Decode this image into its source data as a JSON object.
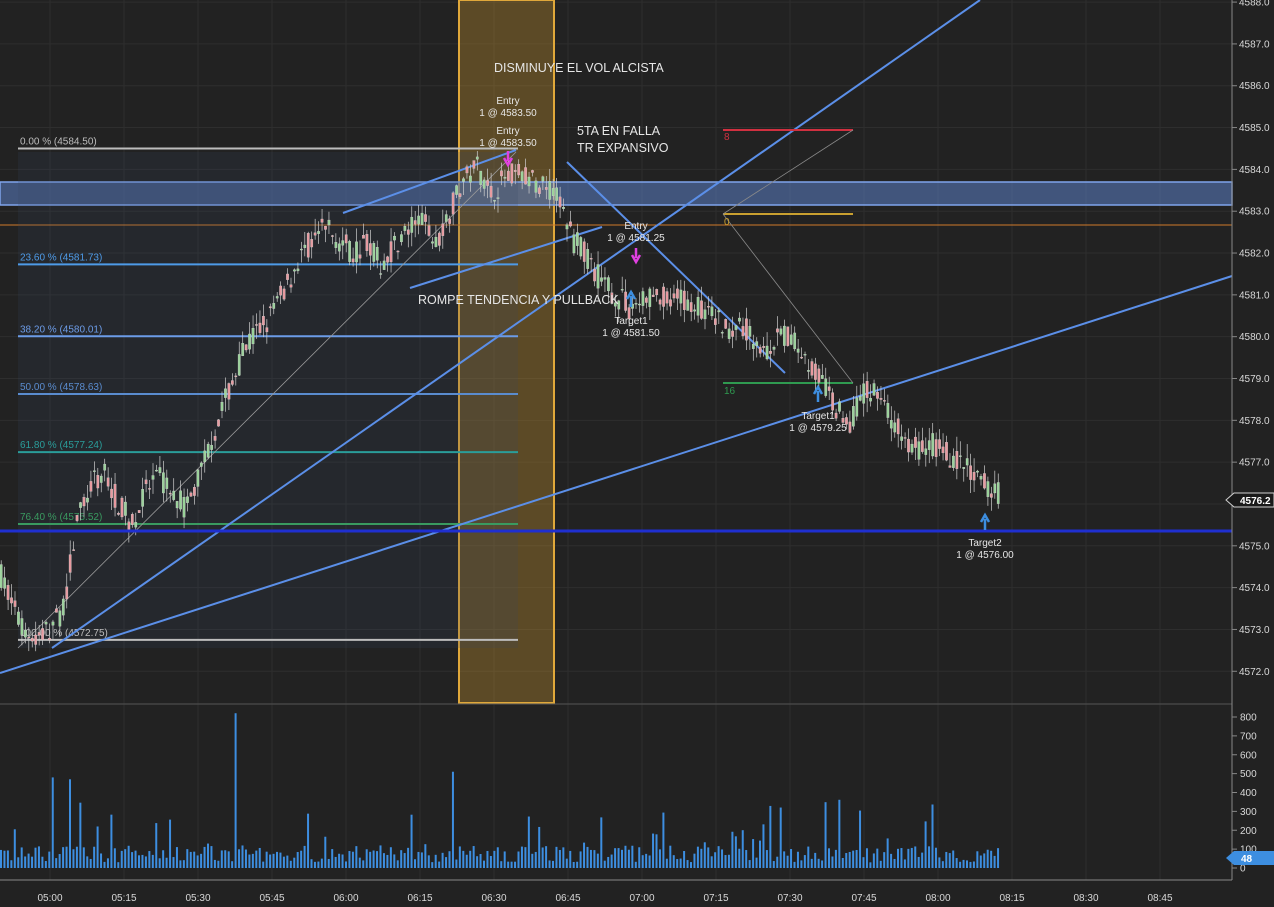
{
  "colors": {
    "background": "#222222",
    "grid": "#2e2e2e",
    "up_candle": "#9ad39a",
    "down_candle": "#e89aa0",
    "trendline": "#5b8fe8",
    "zone_fill": "#5b7fc7",
    "highlight_band": "#c9962f",
    "support_line": "#1f2fd0",
    "volume_bar": "#3d8ee0",
    "axis_text": "#d8d8d8"
  },
  "price_axis": {
    "min": 4571.6,
    "max": 4588.05,
    "ticks": [
      "4572.0",
      "4573.0",
      "4574.0",
      "4575.0",
      "4576.0",
      "4577.0",
      "4578.0",
      "4579.0",
      "4580.0",
      "4581.0",
      "4582.0",
      "4583.0",
      "4584.0",
      "4585.0",
      "4586.0",
      "4587.0",
      "4588.0"
    ],
    "current_price_label": "4576.2",
    "current_price": 4576.2
  },
  "volume_axis": {
    "ticks": [
      "0",
      "100",
      "200",
      "300",
      "400",
      "500",
      "600",
      "700",
      "800"
    ],
    "current_volume_label": "48",
    "current_volume": 48
  },
  "time_axis": {
    "ticks": [
      "05:00",
      "05:15",
      "05:30",
      "05:45",
      "06:00",
      "06:15",
      "06:30",
      "06:45",
      "07:00",
      "07:15",
      "07:30",
      "07:45",
      "08:00",
      "08:15",
      "08:30",
      "08:45"
    ]
  },
  "fibonacci": {
    "levels": [
      {
        "label": "0.00 % (4584.50)",
        "price": 4584.5,
        "color": "#bdbdbd"
      },
      {
        "label": "23.60 % (4581.73)",
        "price": 4581.73,
        "color": "#4e9be8"
      },
      {
        "label": "38.20 % (4580.01)",
        "price": 4580.01,
        "color": "#6c9ce8"
      },
      {
        "label": "50.00 % (4578.63)",
        "price": 4578.63,
        "color": "#5a8ccf"
      },
      {
        "label": "61.80 % (4577.24)",
        "price": 4577.24,
        "color": "#2a9d9a"
      },
      {
        "label": "76.40 % (4575.52)",
        "price": 4575.52,
        "color": "#3a9a60"
      },
      {
        "label": "100.00 % (4572.75)",
        "price": 4572.75,
        "color": "#bdbdbd"
      }
    ]
  },
  "annotations": {
    "vol_text": "DISMINUYE EL VOL ALCISTA",
    "fifth_wave_line1": "5TA EN FALLA",
    "fifth_wave_line2": "TR EXPANSIVO",
    "break_text": "ROMPE TENDENCIA Y PULLBACK"
  },
  "trades": {
    "entry1_title": "Entry",
    "entry1_detail": "1 @ 4583.50",
    "entry2_title": "Entry",
    "entry2_detail": "1 @ 4583.50",
    "entry3_title": "Entry",
    "entry3_detail": "1 @ 4581.25",
    "target1a_title": "Target1",
    "target1a_detail": "1 @ 4581.50",
    "target1b_title": "Target1",
    "target1b_detail": "1 @ 4579.25",
    "target2_title": "Target2",
    "target2_detail": "1 @ 4576.00"
  },
  "counters": {
    "red_count": "8",
    "gold_count": "0",
    "green_count": "16"
  }
}
